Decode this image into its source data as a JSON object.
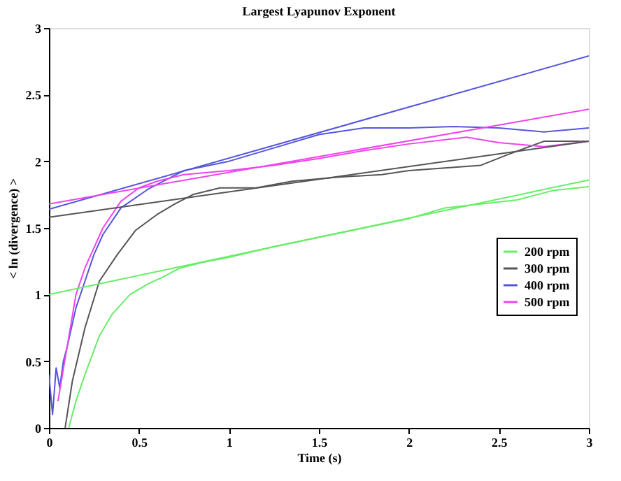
{
  "chart_data": {
    "type": "line",
    "title": "Largest Lyapunov Exponent",
    "xlabel": "Time (s)",
    "ylabel": "< ln (divergence) >",
    "xlim": [
      0,
      3
    ],
    "ylim": [
      0,
      3
    ],
    "xticks": [
      0,
      0.5,
      1,
      1.5,
      2,
      2.5,
      3
    ],
    "yticks": [
      0,
      0.5,
      1,
      1.5,
      2,
      2.5,
      3
    ],
    "grid": false,
    "legend": "right",
    "marker": "none",
    "line_style": "solid",
    "series": [
      {
        "name": "200 rpm",
        "color": "#66ee66",
        "x": [
          0.11,
          0.15,
          0.2,
          0.28,
          0.35,
          0.45,
          0.55,
          0.63,
          0.73,
          0.85,
          1,
          1.25,
          1.5,
          1.75,
          2,
          2.2,
          2.4,
          2.6,
          2.8,
          3
        ],
        "values": [
          0,
          0.2,
          0.4,
          0.69,
          0.85,
          1.0,
          1.08,
          1.13,
          1.2,
          1.24,
          1.28,
          1.36,
          1.43,
          1.5,
          1.57,
          1.65,
          1.68,
          1.71,
          1.78,
          1.81
        ]
      },
      {
        "name": "300 rpm",
        "color": "#555555",
        "x": [
          0.09,
          0.13,
          0.2,
          0.28,
          0.38,
          0.48,
          0.6,
          0.7,
          0.8,
          0.95,
          1.15,
          1.35,
          1.6,
          1.85,
          2,
          2.2,
          2.4,
          2.55,
          2.75,
          3
        ],
        "values": [
          0,
          0.35,
          0.75,
          1.1,
          1.3,
          1.48,
          1.6,
          1.68,
          1.75,
          1.8,
          1.8,
          1.85,
          1.88,
          1.9,
          1.93,
          1.95,
          1.97,
          2.05,
          2.15,
          2.15
        ]
      },
      {
        "name": "400 rpm",
        "color": "#5555dd",
        "x": [
          0,
          0.02,
          0.04,
          0.06,
          0.08,
          0.1,
          0.15,
          0.2,
          0.25,
          0.3,
          0.4,
          0.55,
          0.75,
          1,
          1.25,
          1.5,
          1.75,
          2,
          2.25,
          2.5,
          2.75,
          3
        ],
        "values": [
          0.4,
          0.1,
          0.45,
          0.3,
          0.5,
          0.6,
          0.9,
          1.1,
          1.3,
          1.45,
          1.65,
          1.79,
          1.93,
          2.0,
          2.1,
          2.2,
          2.25,
          2.25,
          2.26,
          2.25,
          2.22,
          2.25
        ]
      },
      {
        "name": "500 rpm",
        "color": "#ee44ee",
        "x": [
          0.05,
          0.1,
          0.15,
          0.2,
          0.3,
          0.4,
          0.5,
          0.6,
          0.75,
          1,
          1.25,
          1.5,
          1.75,
          2,
          2.32,
          2.5,
          2.75,
          3
        ],
        "values": [
          0.2,
          0.6,
          1.0,
          1.2,
          1.5,
          1.7,
          1.8,
          1.85,
          1.9,
          1.93,
          1.97,
          2.02,
          2.08,
          2.13,
          2.18,
          2.14,
          2.11,
          2.15
        ]
      },
      {
        "color": "#66ee66",
        "x": [
          0,
          3
        ],
        "values": [
          1.0,
          1.86
        ]
      },
      {
        "color": "#555555",
        "x": [
          0,
          3
        ],
        "values": [
          1.58,
          2.15
        ]
      },
      {
        "color": "#5555dd",
        "x": [
          0,
          3
        ],
        "values": [
          1.64,
          2.79
        ]
      },
      {
        "color": "#ee44ee",
        "x": [
          0,
          3
        ],
        "values": [
          1.68,
          2.39
        ]
      }
    ]
  }
}
